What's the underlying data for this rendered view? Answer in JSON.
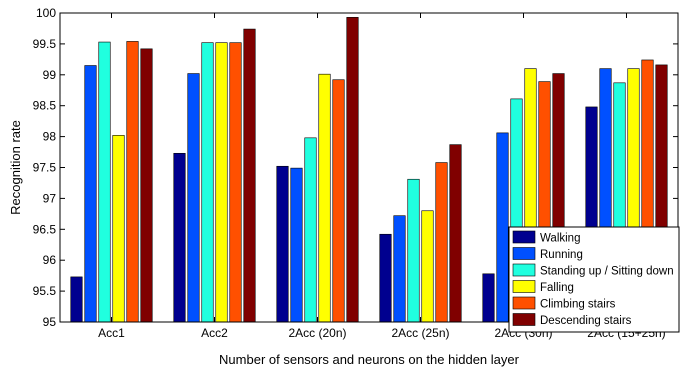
{
  "chart_data": {
    "type": "bar",
    "title": "",
    "xlabel": "Number of sensors and neurons on the hidden layer",
    "ylabel": "Recognition rate",
    "ylim": [
      95,
      100
    ],
    "yticks": [
      "95",
      "95.5",
      "96",
      "96.5",
      "97",
      "97.5",
      "98",
      "98.5",
      "99",
      "99.5",
      "100"
    ],
    "grid": false,
    "legend_position": "bottom-right",
    "categories": [
      "Acc1",
      "Acc2",
      "2Acc (20n)",
      "2Acc (25n)",
      "2Acc (30n)",
      "2Acc (15+25n)"
    ],
    "series": [
      {
        "name": "Walking",
        "color": "#00008f",
        "values": [
          95.73,
          97.73,
          97.52,
          96.42,
          95.78,
          98.48
        ]
      },
      {
        "name": "Running",
        "color": "#0050ff",
        "values": [
          99.15,
          99.02,
          97.49,
          96.72,
          98.06,
          99.1
        ]
      },
      {
        "name": "Standing up / Sitting down",
        "color": "#20ffdf",
        "values": [
          99.53,
          99.52,
          97.98,
          97.31,
          98.61,
          98.87
        ]
      },
      {
        "name": "Falling",
        "color": "#ffff00",
        "values": [
          98.02,
          99.52,
          99.01,
          96.8,
          99.1,
          99.1
        ]
      },
      {
        "name": "Climbing stairs",
        "color": "#ff5000",
        "values": [
          99.54,
          99.52,
          98.92,
          97.58,
          98.89,
          99.24
        ]
      },
      {
        "name": "Descending stairs",
        "color": "#800000",
        "values": [
          99.42,
          99.74,
          99.93,
          97.87,
          99.02,
          99.16
        ]
      }
    ]
  }
}
